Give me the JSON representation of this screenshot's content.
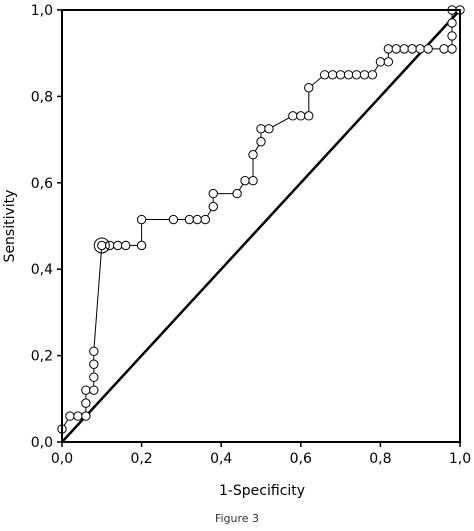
{
  "figure": {
    "caption": "Figure 3"
  },
  "chart_data": {
    "type": "line",
    "xlabel": "1-Specificity",
    "ylabel": "Sensitivity",
    "xlim": [
      0,
      1
    ],
    "ylim": [
      0,
      1
    ],
    "x_ticks": [
      "0,0",
      "0,2",
      "0,4",
      "0,6",
      "0,8",
      "1,0"
    ],
    "y_ticks": [
      "0,0",
      "0,2",
      "0,4",
      "0,6",
      "0,8",
      "1,0"
    ],
    "grid": false,
    "reference_line": {
      "from": [
        0,
        0
      ],
      "to": [
        1,
        1
      ]
    },
    "highlighted_point": [
      0.1,
      0.455
    ],
    "series": [
      {
        "points": [
          [
            0.0,
            0.03
          ],
          [
            0.02,
            0.06
          ],
          [
            0.04,
            0.06
          ],
          [
            0.06,
            0.06
          ],
          [
            0.06,
            0.09
          ],
          [
            0.06,
            0.12
          ],
          [
            0.08,
            0.12
          ],
          [
            0.08,
            0.15
          ],
          [
            0.08,
            0.18
          ],
          [
            0.08,
            0.21
          ],
          [
            0.1,
            0.455
          ],
          [
            0.12,
            0.455
          ],
          [
            0.14,
            0.455
          ],
          [
            0.16,
            0.455
          ],
          [
            0.2,
            0.455
          ],
          [
            0.2,
            0.515
          ],
          [
            0.28,
            0.515
          ],
          [
            0.32,
            0.515
          ],
          [
            0.34,
            0.515
          ],
          [
            0.36,
            0.515
          ],
          [
            0.38,
            0.545
          ],
          [
            0.38,
            0.575
          ],
          [
            0.44,
            0.575
          ],
          [
            0.46,
            0.605
          ],
          [
            0.48,
            0.605
          ],
          [
            0.48,
            0.665
          ],
          [
            0.5,
            0.695
          ],
          [
            0.5,
            0.725
          ],
          [
            0.52,
            0.725
          ],
          [
            0.58,
            0.755
          ],
          [
            0.6,
            0.755
          ],
          [
            0.62,
            0.755
          ],
          [
            0.62,
            0.82
          ],
          [
            0.66,
            0.85
          ],
          [
            0.68,
            0.85
          ],
          [
            0.7,
            0.85
          ],
          [
            0.72,
            0.85
          ],
          [
            0.74,
            0.85
          ],
          [
            0.76,
            0.85
          ],
          [
            0.78,
            0.85
          ],
          [
            0.8,
            0.88
          ],
          [
            0.82,
            0.88
          ],
          [
            0.82,
            0.91
          ],
          [
            0.84,
            0.91
          ],
          [
            0.86,
            0.91
          ],
          [
            0.88,
            0.91
          ],
          [
            0.9,
            0.91
          ],
          [
            0.92,
            0.91
          ],
          [
            0.96,
            0.91
          ],
          [
            0.98,
            0.91
          ],
          [
            0.98,
            0.94
          ],
          [
            0.98,
            0.97
          ],
          [
            0.98,
            1.0
          ],
          [
            1.0,
            1.0
          ]
        ]
      }
    ],
    "colors": {
      "axis": "#000000",
      "series": "#000000",
      "background": "#ffffff"
    }
  }
}
